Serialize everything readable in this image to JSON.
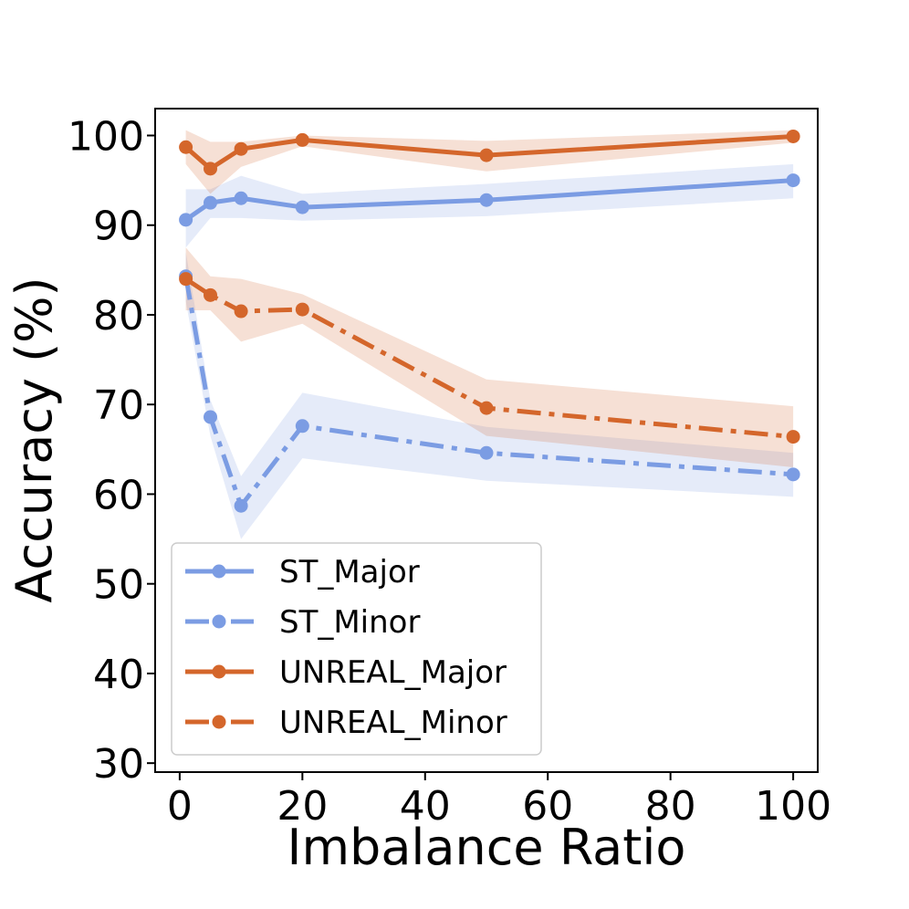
{
  "chart_data": {
    "type": "line",
    "title": "",
    "xlabel": "Imbalance Ratio",
    "ylabel": "Accuracy (%)",
    "xlim": [
      -4,
      104
    ],
    "ylim": [
      29,
      103
    ],
    "xticks": [
      0,
      20,
      40,
      60,
      80,
      100
    ],
    "yticks": [
      30,
      40,
      50,
      60,
      70,
      80,
      90,
      100
    ],
    "x": [
      1,
      5,
      10,
      20,
      50,
      100
    ],
    "grid": false,
    "legend_position": "lower-left",
    "series": [
      {
        "name": "ST_Major",
        "color": "#7b9ce3",
        "linestyle": "solid",
        "values": [
          90.6,
          92.5,
          93.0,
          92.0,
          92.8,
          95.0
        ],
        "band_low": [
          87.5,
          90.8,
          90.8,
          90.5,
          91.0,
          93.0
        ],
        "band_high": [
          94.0,
          94.0,
          95.5,
          93.5,
          94.6,
          96.8
        ]
      },
      {
        "name": "ST_Minor",
        "color": "#7b9ce3",
        "linestyle": "dashdot",
        "values": [
          84.3,
          68.6,
          58.7,
          67.6,
          64.6,
          62.2
        ],
        "band_low": [
          81.5,
          66.5,
          55.0,
          64.0,
          61.5,
          59.7
        ],
        "band_high": [
          87.0,
          70.5,
          62.0,
          71.3,
          67.5,
          64.6
        ]
      },
      {
        "name": "UNREAL_Major",
        "color": "#d4662b",
        "linestyle": "solid",
        "values": [
          98.7,
          96.3,
          98.5,
          99.5,
          97.8,
          99.9
        ],
        "band_low": [
          96.8,
          93.5,
          96.5,
          98.8,
          96.0,
          99.2
        ],
        "band_high": [
          100.6,
          99.3,
          99.3,
          100.0,
          99.4,
          100.6
        ]
      },
      {
        "name": "UNREAL_Minor",
        "color": "#d4662b",
        "linestyle": "dashdot",
        "values": [
          84.0,
          82.2,
          80.4,
          80.6,
          69.6,
          66.4
        ],
        "band_low": [
          80.5,
          80.5,
          77.0,
          79.0,
          66.5,
          63.0
        ],
        "band_high": [
          87.5,
          84.3,
          84.0,
          82.3,
          72.8,
          69.8
        ]
      }
    ]
  }
}
